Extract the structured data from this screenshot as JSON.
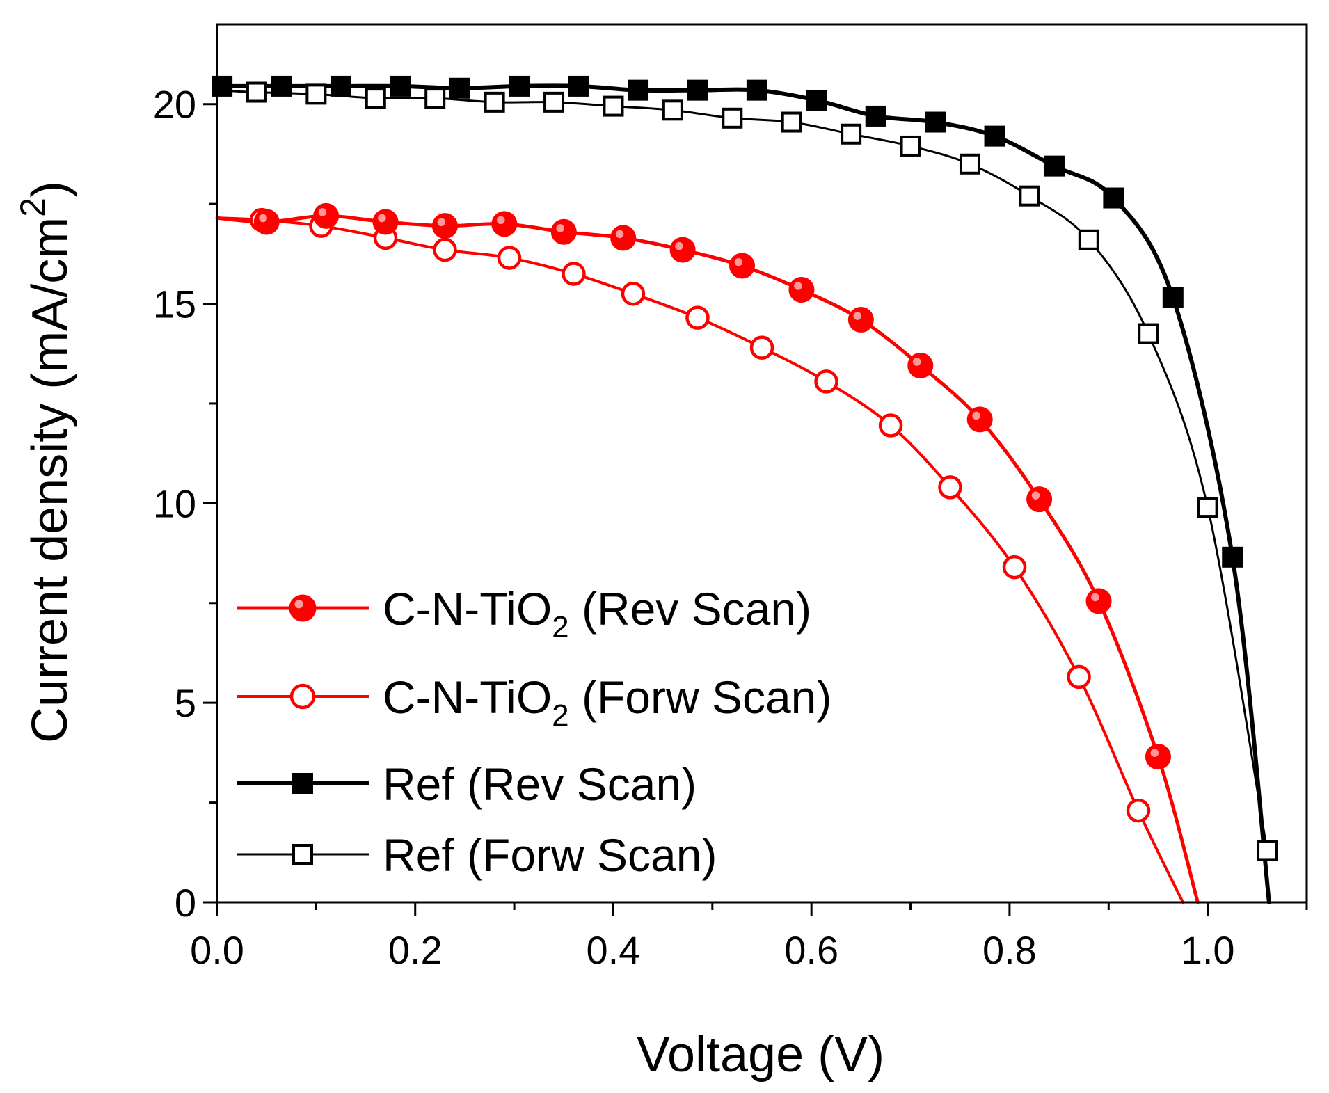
{
  "chart_data": {
    "type": "line",
    "title": "",
    "xlabel": "Voltage (V)",
    "ylabel": "Current density (mA/cm",
    "ylabel_sup": "2",
    "ylabel_close": ")",
    "xlim": [
      0,
      1.1
    ],
    "ylim": [
      0,
      22
    ],
    "xticks": [
      0.0,
      0.2,
      0.4,
      0.6,
      0.8,
      1.0
    ],
    "xtick_labels": [
      "0.0",
      "0.2",
      "0.4",
      "0.6",
      "0.8",
      "1.0"
    ],
    "yticks": [
      0,
      5,
      10,
      15,
      20
    ],
    "ytick_labels": [
      "0",
      "5",
      "10",
      "15",
      "20"
    ],
    "grid": false,
    "legend_position": "bottom-left",
    "series": [
      {
        "name": "C-N-TiO2 (Rev Scan)",
        "legend_main": "C-N-TiO",
        "legend_sub": "2",
        "legend_rest": " (Rev Scan)",
        "color": "#ff0000",
        "marker": "circle",
        "filled": true,
        "line_width": 5,
        "x": [
          0.05,
          0.11,
          0.17,
          0.23,
          0.29,
          0.35,
          0.41,
          0.47,
          0.53,
          0.59,
          0.65,
          0.71,
          0.77,
          0.83,
          0.89,
          0.95
        ],
        "y": [
          17.05,
          17.2,
          17.05,
          16.95,
          17.0,
          16.8,
          16.65,
          16.35,
          15.95,
          15.35,
          14.6,
          13.45,
          12.1,
          10.1,
          7.55,
          3.65
        ],
        "curve_x": [
          0.0,
          0.05,
          0.11,
          0.17,
          0.23,
          0.29,
          0.35,
          0.41,
          0.47,
          0.53,
          0.59,
          0.65,
          0.71,
          0.77,
          0.83,
          0.89,
          0.95,
          0.99
        ],
        "curve_y": [
          17.15,
          17.05,
          17.2,
          17.05,
          16.95,
          17.0,
          16.8,
          16.65,
          16.35,
          15.95,
          15.35,
          14.6,
          13.45,
          12.1,
          10.1,
          7.55,
          3.65,
          0.0
        ]
      },
      {
        "name": "C-N-TiO2 (Forw Scan)",
        "legend_main": "C-N-TiO",
        "legend_sub": "2",
        "legend_rest": " (Forw Scan)",
        "color": "#ff0000",
        "marker": "circle",
        "filled": false,
        "line_width": 4,
        "x": [
          0.045,
          0.105,
          0.17,
          0.23,
          0.295,
          0.36,
          0.42,
          0.485,
          0.55,
          0.615,
          0.68,
          0.74,
          0.805,
          0.87,
          0.93
        ],
        "y": [
          17.1,
          16.95,
          16.65,
          16.35,
          16.15,
          15.75,
          15.25,
          14.65,
          13.9,
          13.05,
          11.95,
          10.4,
          8.4,
          5.65,
          2.3
        ],
        "curve_x": [
          0.0,
          0.045,
          0.105,
          0.17,
          0.23,
          0.295,
          0.36,
          0.42,
          0.485,
          0.55,
          0.615,
          0.68,
          0.74,
          0.805,
          0.87,
          0.93,
          0.975
        ],
        "curve_y": [
          17.15,
          17.1,
          16.95,
          16.65,
          16.35,
          16.15,
          15.75,
          15.25,
          14.65,
          13.9,
          13.05,
          11.95,
          10.4,
          8.4,
          5.65,
          2.3,
          0.0
        ]
      },
      {
        "name": "Ref (Rev Scan)",
        "legend_main": "Ref (Rev Scan)",
        "legend_sub": "",
        "legend_rest": "",
        "color": "#000000",
        "marker": "square",
        "filled": true,
        "line_width": 6,
        "x": [
          0.005,
          0.065,
          0.125,
          0.185,
          0.245,
          0.305,
          0.365,
          0.425,
          0.485,
          0.545,
          0.605,
          0.665,
          0.725,
          0.785,
          0.845,
          0.905,
          0.965,
          1.025
        ],
        "y": [
          20.45,
          20.45,
          20.45,
          20.45,
          20.4,
          20.45,
          20.45,
          20.35,
          20.35,
          20.35,
          20.1,
          19.7,
          19.55,
          19.2,
          18.45,
          17.65,
          15.15,
          8.65
        ],
        "curve_x": [
          0.005,
          0.065,
          0.125,
          0.185,
          0.245,
          0.305,
          0.365,
          0.425,
          0.485,
          0.545,
          0.605,
          0.665,
          0.725,
          0.785,
          0.845,
          0.905,
          0.965,
          1.025,
          1.062
        ],
        "curve_y": [
          20.45,
          20.45,
          20.45,
          20.45,
          20.4,
          20.45,
          20.45,
          20.35,
          20.35,
          20.35,
          20.1,
          19.7,
          19.55,
          19.2,
          18.45,
          17.65,
          15.15,
          8.65,
          0.0
        ]
      },
      {
        "name": "Ref (Forw Scan)",
        "legend_main": "Ref (Forw Scan)",
        "legend_sub": "",
        "legend_rest": "",
        "color": "#000000",
        "marker": "square",
        "filled": false,
        "line_width": 3,
        "x": [
          0.04,
          0.1,
          0.16,
          0.22,
          0.28,
          0.34,
          0.4,
          0.46,
          0.52,
          0.58,
          0.64,
          0.7,
          0.76,
          0.82,
          0.88,
          0.94,
          1.0,
          1.06
        ],
        "y": [
          20.3,
          20.25,
          20.15,
          20.15,
          20.05,
          20.05,
          19.95,
          19.85,
          19.65,
          19.55,
          19.25,
          18.95,
          18.5,
          17.7,
          16.6,
          14.25,
          9.9,
          1.3
        ],
        "curve_x": [
          0.0,
          0.04,
          0.1,
          0.16,
          0.22,
          0.28,
          0.34,
          0.4,
          0.46,
          0.52,
          0.58,
          0.64,
          0.7,
          0.76,
          0.82,
          0.88,
          0.94,
          1.0,
          1.06
        ],
        "curve_y": [
          20.35,
          20.3,
          20.25,
          20.15,
          20.15,
          20.05,
          20.05,
          19.95,
          19.85,
          19.65,
          19.55,
          19.25,
          18.95,
          18.5,
          17.7,
          16.6,
          14.25,
          9.9,
          1.3
        ]
      }
    ]
  }
}
